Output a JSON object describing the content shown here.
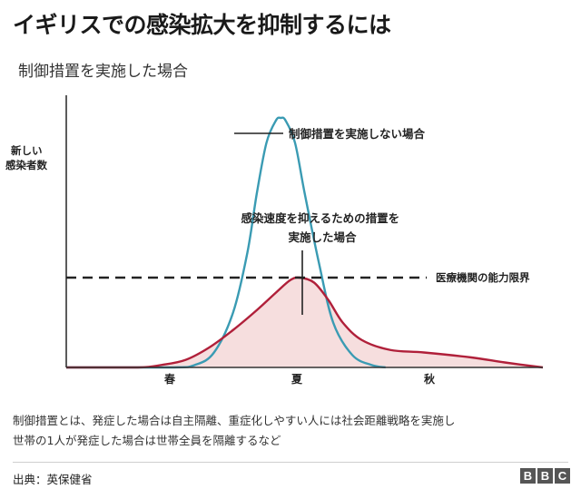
{
  "header": {
    "title": "イギリスでの感染拡大を抑制するには",
    "subtitle": "制御措置を実施した場合"
  },
  "chart_data": {
    "type": "area",
    "title": "イギリスでの感染拡大を抑制するには",
    "subtitle": "制御措置を実施した場合",
    "ylabel": "新しい\n感染者数",
    "xlabel": "",
    "x_ticks": [
      "春",
      "夏",
      "秋"
    ],
    "threshold": {
      "label": "医療機関の能力限界",
      "value": 36
    },
    "ylim": [
      0,
      100
    ],
    "series": [
      {
        "name": "制御措置を実施しない場合",
        "color": "#3a9bb3",
        "fill": "none",
        "points": [
          [
            0,
            0
          ],
          [
            22,
            0
          ],
          [
            27,
            1
          ],
          [
            31,
            6
          ],
          [
            35,
            22
          ],
          [
            38,
            46
          ],
          [
            40,
            70
          ],
          [
            42,
            90
          ],
          [
            44,
            99
          ],
          [
            45,
            100
          ],
          [
            46,
            99
          ],
          [
            48,
            90
          ],
          [
            50,
            70
          ],
          [
            53,
            42
          ],
          [
            56,
            18
          ],
          [
            60,
            5
          ],
          [
            64,
            1
          ],
          [
            67,
            0
          ]
        ]
      },
      {
        "name": "感染速度を抑えるための措置を実施した場合",
        "color": "#b0203a",
        "fill": "#f6dede",
        "points": [
          [
            0,
            0
          ],
          [
            15,
            0
          ],
          [
            20,
            1
          ],
          [
            25,
            3
          ],
          [
            30,
            8
          ],
          [
            35,
            15
          ],
          [
            40,
            23
          ],
          [
            44,
            30
          ],
          [
            47,
            35
          ],
          [
            49,
            36
          ],
          [
            52,
            34
          ],
          [
            55,
            27
          ],
          [
            58,
            18
          ],
          [
            62,
            11
          ],
          [
            68,
            7
          ],
          [
            75,
            6
          ],
          [
            85,
            4
          ],
          [
            92,
            2
          ],
          [
            100,
            0
          ]
        ]
      }
    ],
    "annotations": [
      "制御措置を実施しない場合",
      "感染速度を抑えるための措置を実施した場合"
    ]
  },
  "notes": {
    "line1": "制御措置とは、発症した場合は自主隔離、重症化しやすい人には社会距離戦略を実施し",
    "line2": "世帯の1人が発症した場合は世帯全員を隔離するなど"
  },
  "footer": {
    "source": "出典：英保健省",
    "logo_letters": [
      "B",
      "B",
      "C"
    ]
  }
}
